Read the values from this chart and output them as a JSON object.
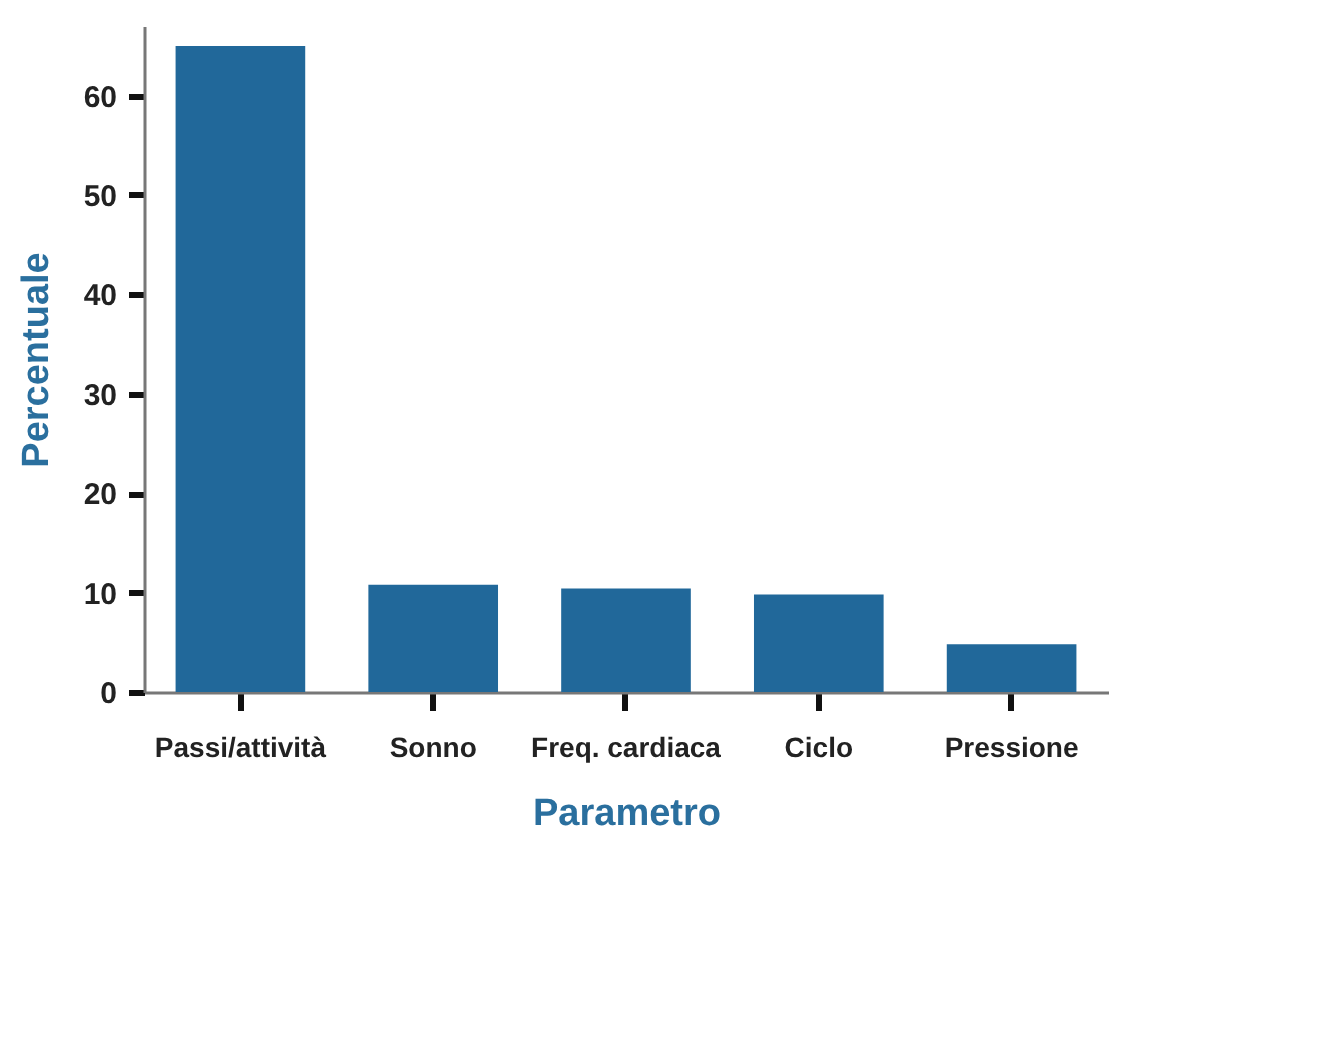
{
  "chart_data": {
    "type": "bar",
    "xlabel": "Parametro",
    "ylabel": "Percentuale",
    "categories": [
      "Passi/attività",
      "Sonno",
      "Freq. cardiaca",
      "Ciclo",
      "Pressione"
    ],
    "values": [
      65,
      10.8,
      10.4,
      9.8,
      4.8
    ],
    "color": "#21689a",
    "ylim": [
      0,
      67
    ],
    "yticks": [
      0,
      10,
      20,
      30,
      40,
      50,
      60
    ],
    "grid": false
  }
}
